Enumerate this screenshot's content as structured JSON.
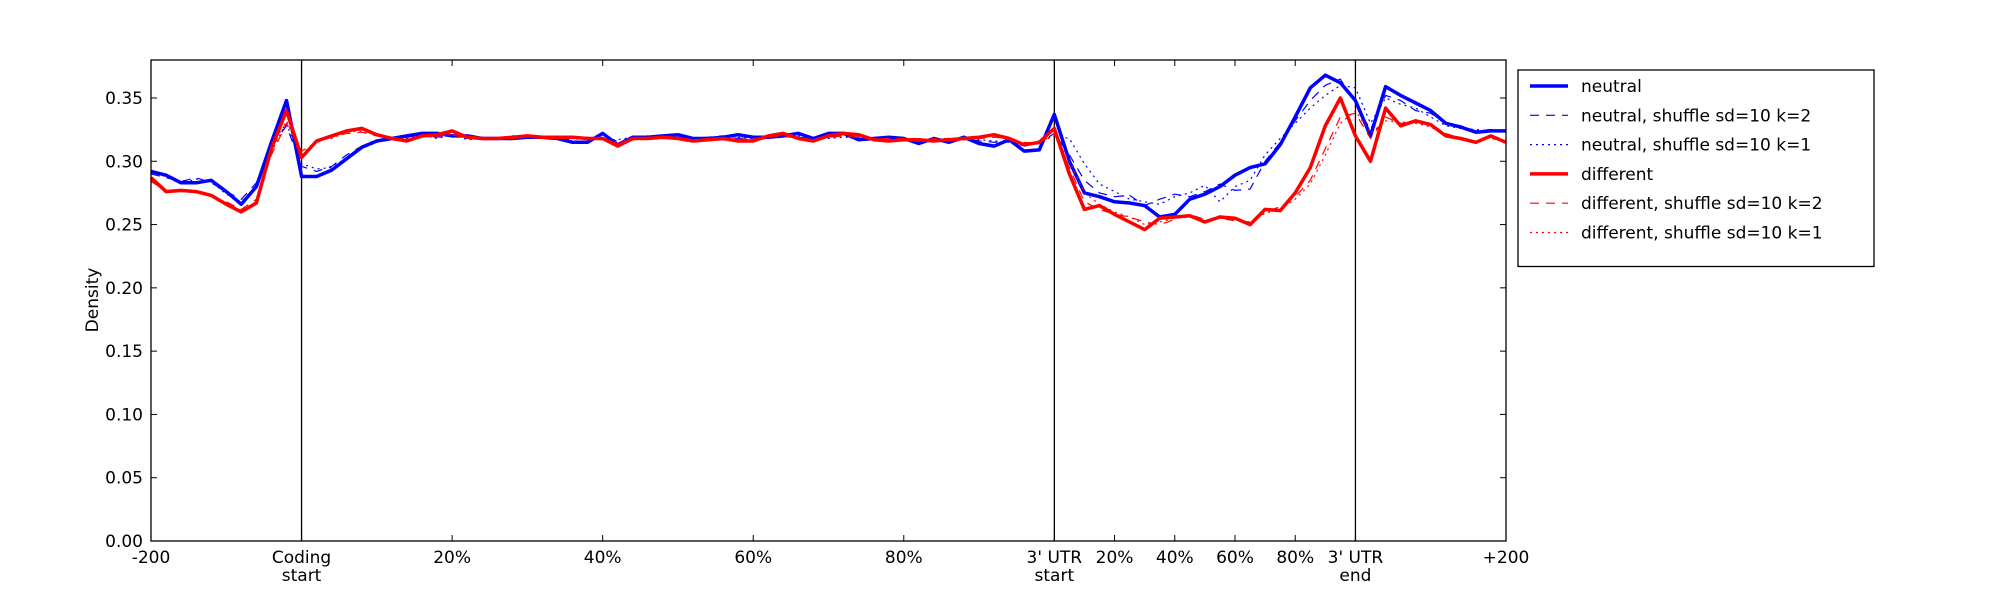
{
  "chart_data": {
    "type": "line",
    "y_label": "Density",
    "x": [
      0,
      1,
      2,
      3,
      4,
      5,
      6,
      7,
      8,
      9,
      10,
      11,
      12,
      13,
      14,
      15,
      16,
      17,
      18,
      19,
      20,
      21,
      22,
      23,
      24,
      25,
      26,
      27,
      28,
      29,
      30,
      31,
      32,
      33,
      34,
      35,
      36,
      37,
      38,
      39,
      40,
      41,
      42,
      43,
      44,
      45,
      46,
      47,
      48,
      49,
      50,
      51,
      52,
      53,
      54,
      55,
      56,
      57,
      58,
      59,
      60,
      61,
      62,
      63,
      64,
      65,
      66,
      67,
      68,
      69,
      70,
      71,
      72,
      73,
      74,
      75,
      76,
      77,
      78,
      79,
      80,
      81,
      82,
      83,
      84,
      85,
      86,
      87,
      88,
      89,
      90
    ],
    "xlim": [
      0,
      90
    ],
    "xticks": [
      {
        "value": 0,
        "label": "-200"
      },
      {
        "value": 10,
        "label": "Coding\nstart"
      },
      {
        "value": 20,
        "label": "20%"
      },
      {
        "value": 30,
        "label": "40%"
      },
      {
        "value": 40,
        "label": "60%"
      },
      {
        "value": 50,
        "label": "80%"
      },
      {
        "value": 60,
        "label": "3' UTR\nstart"
      },
      {
        "value": 64,
        "label": "20%"
      },
      {
        "value": 68,
        "label": "40%"
      },
      {
        "value": 72,
        "label": "60%"
      },
      {
        "value": 76,
        "label": "80%"
      },
      {
        "value": 80,
        "label": "3' UTR\nend"
      },
      {
        "value": 90,
        "label": "+200"
      }
    ],
    "vlines": [
      10,
      60,
      80
    ],
    "ylim": [
      0,
      0.38
    ],
    "yticks": [
      {
        "value": 0,
        "label": "0.00"
      },
      {
        "value": 0.05,
        "label": "0.05"
      },
      {
        "value": 0.1,
        "label": "0.10"
      },
      {
        "value": 0.15,
        "label": "0.15"
      },
      {
        "value": 0.2,
        "label": "0.20"
      },
      {
        "value": 0.25,
        "label": "0.25"
      },
      {
        "value": 0.3,
        "label": "0.30"
      },
      {
        "value": 0.35,
        "label": "0.35"
      }
    ],
    "legend": "right",
    "series": [
      {
        "name": "neutral",
        "color": "#0000ff",
        "linestyle": "solid",
        "linewidth": 3.5,
        "values": [
          0.292,
          0.289,
          0.283,
          0.283,
          0.285,
          0.276,
          0.266,
          0.28,
          0.315,
          0.348,
          0.288,
          0.288,
          0.293,
          0.302,
          0.311,
          0.316,
          0.318,
          0.32,
          0.322,
          0.322,
          0.32,
          0.32,
          0.318,
          0.318,
          0.318,
          0.319,
          0.319,
          0.318,
          0.315,
          0.315,
          0.322,
          0.313,
          0.319,
          0.319,
          0.32,
          0.321,
          0.318,
          0.318,
          0.319,
          0.321,
          0.319,
          0.319,
          0.32,
          0.322,
          0.318,
          0.322,
          0.322,
          0.317,
          0.318,
          0.319,
          0.318,
          0.314,
          0.318,
          0.315,
          0.319,
          0.314,
          0.312,
          0.317,
          0.308,
          0.309,
          0.337,
          0.3,
          0.275,
          0.272,
          0.268,
          0.267,
          0.265,
          0.256,
          0.258,
          0.27,
          0.274,
          0.28,
          0.289,
          0.295,
          0.298,
          0.313,
          0.335,
          0.358,
          0.368,
          0.362,
          0.348,
          0.32,
          0.359,
          0.352,
          0.346,
          0.34,
          0.33,
          0.327,
          0.323,
          0.324,
          0.324
        ]
      },
      {
        "name": "neutral, shuffle sd=10 k=2",
        "color": "#0000ff",
        "linestyle": "dashed",
        "linewidth": 1.2,
        "values": [
          0.29,
          0.287,
          0.284,
          0.287,
          0.283,
          0.276,
          0.27,
          0.283,
          0.312,
          0.328,
          0.296,
          0.292,
          0.296,
          0.305,
          0.312,
          0.316,
          0.318,
          0.319,
          0.32,
          0.319,
          0.32,
          0.318,
          0.319,
          0.317,
          0.32,
          0.319,
          0.318,
          0.318,
          0.317,
          0.319,
          0.318,
          0.316,
          0.318,
          0.32,
          0.319,
          0.32,
          0.318,
          0.319,
          0.32,
          0.318,
          0.319,
          0.318,
          0.32,
          0.319,
          0.318,
          0.319,
          0.32,
          0.318,
          0.317,
          0.318,
          0.319,
          0.316,
          0.318,
          0.317,
          0.318,
          0.316,
          0.315,
          0.316,
          0.312,
          0.314,
          0.322,
          0.305,
          0.285,
          0.275,
          0.272,
          0.273,
          0.265,
          0.27,
          0.274,
          0.272,
          0.276,
          0.282,
          0.277,
          0.278,
          0.3,
          0.315,
          0.332,
          0.348,
          0.36,
          0.365,
          0.345,
          0.325,
          0.352,
          0.348,
          0.34,
          0.338,
          0.33,
          0.328,
          0.324,
          0.325,
          0.323
        ]
      },
      {
        "name": "neutral, shuffle sd=10 k=1",
        "color": "#0000ff",
        "linestyle": "dotted",
        "linewidth": 1.2,
        "values": [
          0.291,
          0.288,
          0.282,
          0.286,
          0.284,
          0.274,
          0.268,
          0.281,
          0.314,
          0.33,
          0.298,
          0.294,
          0.295,
          0.303,
          0.31,
          0.315,
          0.319,
          0.318,
          0.321,
          0.318,
          0.321,
          0.317,
          0.318,
          0.318,
          0.319,
          0.321,
          0.318,
          0.317,
          0.318,
          0.318,
          0.317,
          0.317,
          0.319,
          0.319,
          0.32,
          0.318,
          0.319,
          0.318,
          0.319,
          0.319,
          0.318,
          0.319,
          0.319,
          0.32,
          0.319,
          0.318,
          0.319,
          0.319,
          0.318,
          0.317,
          0.318,
          0.317,
          0.317,
          0.318,
          0.317,
          0.317,
          0.316,
          0.315,
          0.313,
          0.316,
          0.32,
          0.318,
          0.298,
          0.282,
          0.276,
          0.27,
          0.268,
          0.266,
          0.272,
          0.275,
          0.281,
          0.268,
          0.28,
          0.285,
          0.305,
          0.318,
          0.33,
          0.342,
          0.352,
          0.36,
          0.358,
          0.33,
          0.35,
          0.345,
          0.342,
          0.335,
          0.328,
          0.326,
          0.325,
          0.324,
          0.324
        ]
      },
      {
        "name": "different",
        "color": "#ff0000",
        "linestyle": "solid",
        "linewidth": 3.5,
        "values": [
          0.287,
          0.276,
          0.277,
          0.276,
          0.273,
          0.266,
          0.26,
          0.267,
          0.31,
          0.34,
          0.303,
          0.316,
          0.32,
          0.324,
          0.326,
          0.321,
          0.318,
          0.316,
          0.32,
          0.321,
          0.324,
          0.319,
          0.318,
          0.318,
          0.319,
          0.32,
          0.319,
          0.319,
          0.319,
          0.318,
          0.318,
          0.312,
          0.318,
          0.318,
          0.319,
          0.318,
          0.316,
          0.317,
          0.318,
          0.316,
          0.316,
          0.32,
          0.322,
          0.318,
          0.316,
          0.32,
          0.322,
          0.321,
          0.317,
          0.316,
          0.317,
          0.317,
          0.316,
          0.317,
          0.318,
          0.319,
          0.321,
          0.318,
          0.313,
          0.315,
          0.326,
          0.29,
          0.262,
          0.265,
          0.258,
          0.252,
          0.246,
          0.255,
          0.256,
          0.257,
          0.252,
          0.256,
          0.255,
          0.25,
          0.262,
          0.261,
          0.275,
          0.295,
          0.328,
          0.35,
          0.32,
          0.3,
          0.342,
          0.328,
          0.332,
          0.329,
          0.32,
          0.318,
          0.315,
          0.32,
          0.315
        ]
      },
      {
        "name": "different, shuffle sd=10 k=2",
        "color": "#ff0000",
        "linestyle": "dashed",
        "linewidth": 1.2,
        "values": [
          0.284,
          0.277,
          0.276,
          0.277,
          0.272,
          0.268,
          0.262,
          0.27,
          0.305,
          0.33,
          0.308,
          0.315,
          0.319,
          0.322,
          0.323,
          0.32,
          0.319,
          0.317,
          0.319,
          0.32,
          0.321,
          0.318,
          0.319,
          0.317,
          0.319,
          0.319,
          0.318,
          0.32,
          0.318,
          0.319,
          0.317,
          0.314,
          0.317,
          0.319,
          0.318,
          0.318,
          0.317,
          0.318,
          0.318,
          0.317,
          0.318,
          0.319,
          0.32,
          0.318,
          0.317,
          0.319,
          0.32,
          0.319,
          0.318,
          0.318,
          0.318,
          0.316,
          0.318,
          0.318,
          0.317,
          0.318,
          0.319,
          0.318,
          0.315,
          0.314,
          0.322,
          0.295,
          0.268,
          0.262,
          0.258,
          0.256,
          0.252,
          0.25,
          0.254,
          0.258,
          0.254,
          0.255,
          0.253,
          0.252,
          0.26,
          0.264,
          0.272,
          0.285,
          0.31,
          0.335,
          0.338,
          0.318,
          0.335,
          0.33,
          0.331,
          0.328,
          0.322,
          0.318,
          0.316,
          0.318,
          0.316
        ]
      },
      {
        "name": "different, shuffle sd=10 k=1",
        "color": "#ff0000",
        "linestyle": "dotted",
        "linewidth": 1.2,
        "values": [
          0.285,
          0.276,
          0.278,
          0.275,
          0.274,
          0.267,
          0.261,
          0.268,
          0.307,
          0.332,
          0.305,
          0.317,
          0.318,
          0.323,
          0.324,
          0.321,
          0.318,
          0.318,
          0.32,
          0.319,
          0.322,
          0.319,
          0.318,
          0.318,
          0.318,
          0.319,
          0.319,
          0.319,
          0.318,
          0.318,
          0.318,
          0.315,
          0.318,
          0.317,
          0.318,
          0.319,
          0.316,
          0.317,
          0.317,
          0.318,
          0.317,
          0.318,
          0.321,
          0.318,
          0.317,
          0.319,
          0.321,
          0.32,
          0.318,
          0.317,
          0.317,
          0.317,
          0.317,
          0.317,
          0.318,
          0.318,
          0.32,
          0.318,
          0.314,
          0.315,
          0.32,
          0.3,
          0.275,
          0.266,
          0.26,
          0.256,
          0.25,
          0.252,
          0.255,
          0.256,
          0.253,
          0.257,
          0.254,
          0.251,
          0.259,
          0.262,
          0.27,
          0.282,
          0.305,
          0.33,
          0.34,
          0.322,
          0.332,
          0.331,
          0.33,
          0.327,
          0.321,
          0.317,
          0.315,
          0.319,
          0.316
        ]
      }
    ]
  }
}
